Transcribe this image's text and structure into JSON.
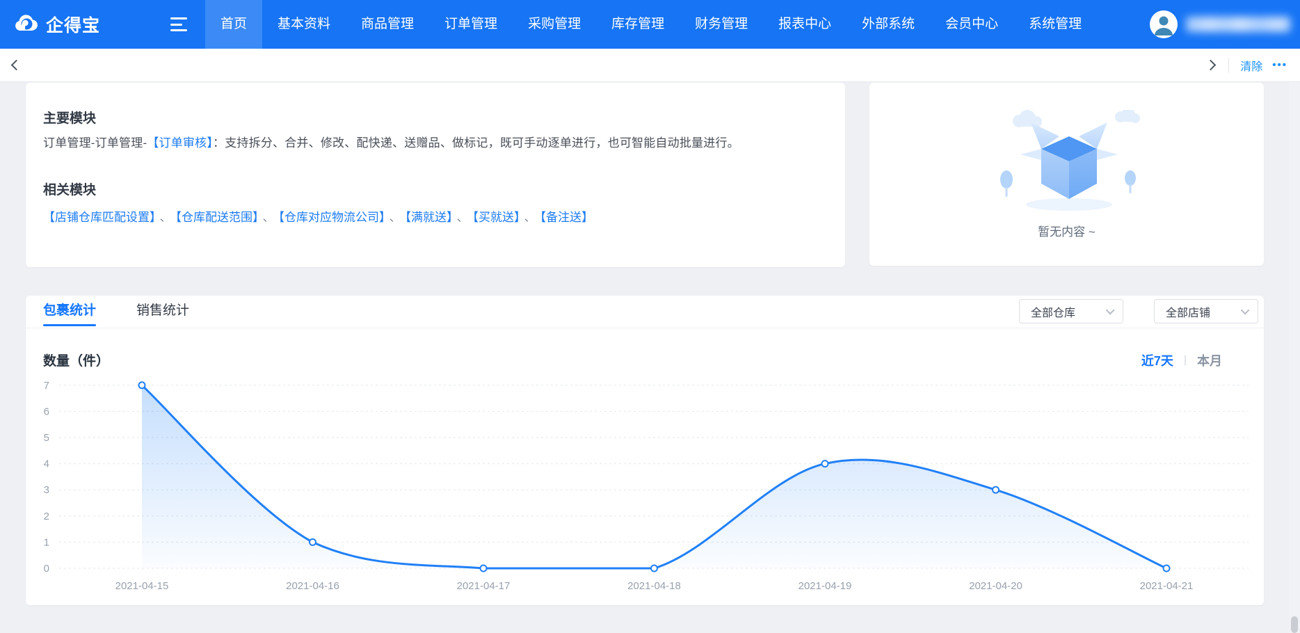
{
  "navbar": {
    "logo_text": "企得宝",
    "items": [
      {
        "label": "首页",
        "active": true
      },
      {
        "label": "基本资料",
        "active": false
      },
      {
        "label": "商品管理",
        "active": false
      },
      {
        "label": "订单管理",
        "active": false
      },
      {
        "label": "采购管理",
        "active": false
      },
      {
        "label": "库存管理",
        "active": false
      },
      {
        "label": "财务管理",
        "active": false
      },
      {
        "label": "报表中心",
        "active": false
      },
      {
        "label": "外部系统",
        "active": false
      },
      {
        "label": "会员中心",
        "active": false
      },
      {
        "label": "系统管理",
        "active": false
      }
    ]
  },
  "toolbar": {
    "clear_label": "清除",
    "more_label": "•••"
  },
  "main_card": {
    "section1_title": "主要模块",
    "para_prefix": "订单管理-订单管理-",
    "para_link": "【订单审核】",
    "para_suffix": "：支持拆分、合并、修改、配快递、送赠品、做标记，既可手动逐单进行，也可智能自动批量进行。",
    "section2_title": "相关模块",
    "separator": "、",
    "related_links": [
      "【店铺仓库匹配设置】",
      "【仓库配送范围】",
      "【仓库对应物流公司】",
      "【满就送】",
      "【买就送】",
      "【备注送】"
    ]
  },
  "empty_card": {
    "text": "暂无内容 ~"
  },
  "stats_card": {
    "tabs": [
      {
        "label": "包裹统计",
        "active": true
      },
      {
        "label": "销售统计",
        "active": false
      }
    ],
    "warehouse_filter": "全部仓库",
    "shop_filter": "全部店铺",
    "range_recent": "近7天",
    "range_divider": "|",
    "range_month": "本月"
  },
  "chart_data": {
    "type": "area",
    "title": "数量（件）",
    "categories": [
      "2021-04-15",
      "2021-04-16",
      "2021-04-17",
      "2021-04-18",
      "2021-04-19",
      "2021-04-20",
      "2021-04-21"
    ],
    "values": [
      7,
      1,
      0,
      0,
      4,
      3,
      0
    ],
    "ylim": [
      0,
      7
    ],
    "ytick_interval": 1,
    "smooth": true,
    "grid": "horizontal-dashed",
    "legend": "none",
    "line_color": "#2080F7",
    "area_color_top": "rgba(32,128,247,0.26)",
    "area_color_bottom": "rgba(32,128,247,0.02)",
    "axis_label_color": "#98a1ad",
    "grid_color": "#e4e7ec",
    "point_style": "hollow-circle"
  },
  "colors": {
    "accent": "#1677FF",
    "navbar": "#1674F5",
    "link": "#1B7BF2"
  }
}
